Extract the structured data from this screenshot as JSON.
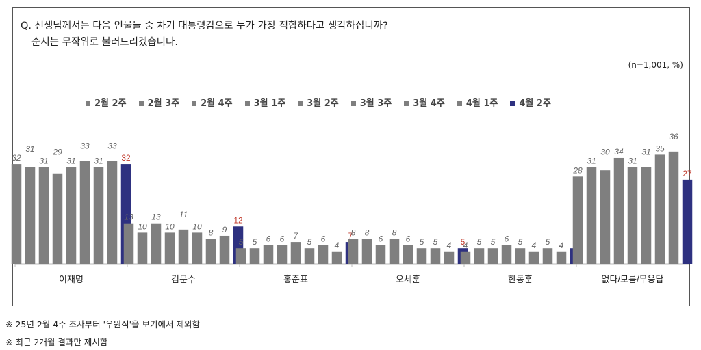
{
  "question_line1": "Q. 선생님께서는 다음 인물들 중 차기 대통령감으로 누가 가장 적합하다고 생각하십니까?",
  "question_line2": "순서는 무작위로 불러드리겠습니다.",
  "sample_note": "(n=1,001, %)",
  "footnotes": [
    "※ 25년 2월 4주 조사부터 '우원식'을 보기에서 제외함",
    "※ 최근 2개월 결과만 제시함"
  ],
  "chart_data": {
    "type": "bar",
    "categories": [
      "이재명",
      "김문수",
      "홍준표",
      "오세훈",
      "한동훈",
      "없다/모름/무응답"
    ],
    "series": [
      {
        "name": "2월 2주",
        "color": "#7f7f7f",
        "values": [
          32,
          13,
          5,
          8,
          4,
          28
        ]
      },
      {
        "name": "2월 3주",
        "color": "#7f7f7f",
        "values": [
          31,
          10,
          5,
          8,
          5,
          31
        ]
      },
      {
        "name": "2월 4주",
        "color": "#7f7f7f",
        "values": [
          31,
          13,
          6,
          6,
          5,
          30
        ]
      },
      {
        "name": "3월 1주",
        "color": "#7f7f7f",
        "values": [
          29,
          10,
          6,
          8,
          6,
          34
        ]
      },
      {
        "name": "3월 2주",
        "color": "#7f7f7f",
        "values": [
          31,
          11,
          7,
          6,
          5,
          31
        ]
      },
      {
        "name": "3월 3주",
        "color": "#7f7f7f",
        "values": [
          33,
          10,
          5,
          5,
          4,
          31
        ]
      },
      {
        "name": "3월 4주",
        "color": "#7f7f7f",
        "values": [
          31,
          8,
          6,
          5,
          5,
          35
        ]
      },
      {
        "name": "4월 1주",
        "color": "#7f7f7f",
        "values": [
          33,
          9,
          4,
          4,
          4,
          36
        ]
      },
      {
        "name": "4월 2주",
        "color": "#2e3180",
        "values": [
          32,
          12,
          7,
          5,
          5,
          27
        ]
      }
    ],
    "highlight_label_color": "#c0392b",
    "ylim": [
      0,
      36
    ]
  }
}
